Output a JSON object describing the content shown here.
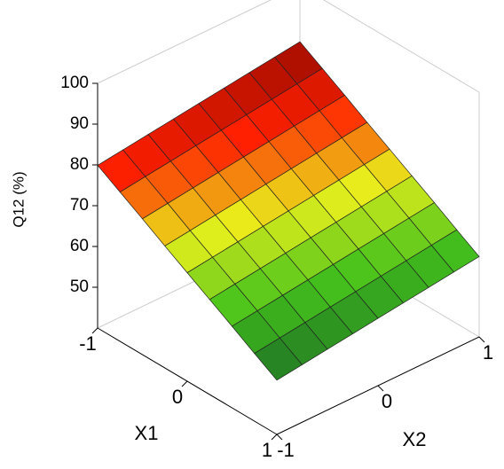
{
  "chart_data": {
    "type": "surface",
    "x_label": "X1",
    "y_label": "X2",
    "z_label": "Q12 (%)",
    "x": [
      -1,
      -0.75,
      -0.5,
      -0.25,
      0,
      0.25,
      0.5,
      0.75,
      1
    ],
    "y": [
      -1,
      -0.75,
      -0.5,
      -0.25,
      0,
      0.25,
      0.5,
      0.75,
      1
    ],
    "z": [
      [
        79.9,
        80.7,
        81.5,
        82.3,
        83.1,
        83.9,
        84.7,
        85.5,
        86.3
      ],
      [
        76.6,
        77.4,
        78.2,
        79.0,
        79.8,
        80.6,
        81.4,
        82.2,
        83.0
      ],
      [
        73.3,
        74.1,
        74.9,
        75.7,
        76.5,
        77.3,
        78.1,
        78.9,
        79.7
      ],
      [
        69.9,
        70.7,
        71.5,
        72.3,
        73.1,
        73.9,
        74.7,
        75.5,
        76.3
      ],
      [
        66.6,
        67.4,
        68.2,
        69.0,
        69.8,
        70.6,
        71.4,
        72.2,
        73.0
      ],
      [
        63.3,
        64.1,
        64.9,
        65.7,
        66.5,
        67.3,
        68.1,
        68.9,
        69.7
      ],
      [
        60.0,
        60.8,
        61.6,
        62.4,
        63.2,
        64.0,
        64.8,
        65.6,
        66.4
      ],
      [
        56.6,
        57.4,
        58.2,
        59.0,
        59.8,
        60.6,
        61.4,
        62.2,
        63.0
      ],
      [
        53.3,
        54.1,
        54.9,
        55.7,
        56.5,
        57.3,
        58.1,
        58.9,
        59.7
      ]
    ],
    "xlim": [
      -1,
      1
    ],
    "xticks": [
      -1,
      0,
      1
    ],
    "ylim": [
      -1,
      1
    ],
    "yticks": [
      -1,
      0,
      1
    ],
    "zlim": [
      40,
      100
    ],
    "zticks": [
      50,
      60,
      70,
      80,
      90,
      100
    ],
    "colormap": [
      "#1b6e25",
      "#45c21c",
      "#e9f01c",
      "#ff2000",
      "#8a0800"
    ]
  }
}
